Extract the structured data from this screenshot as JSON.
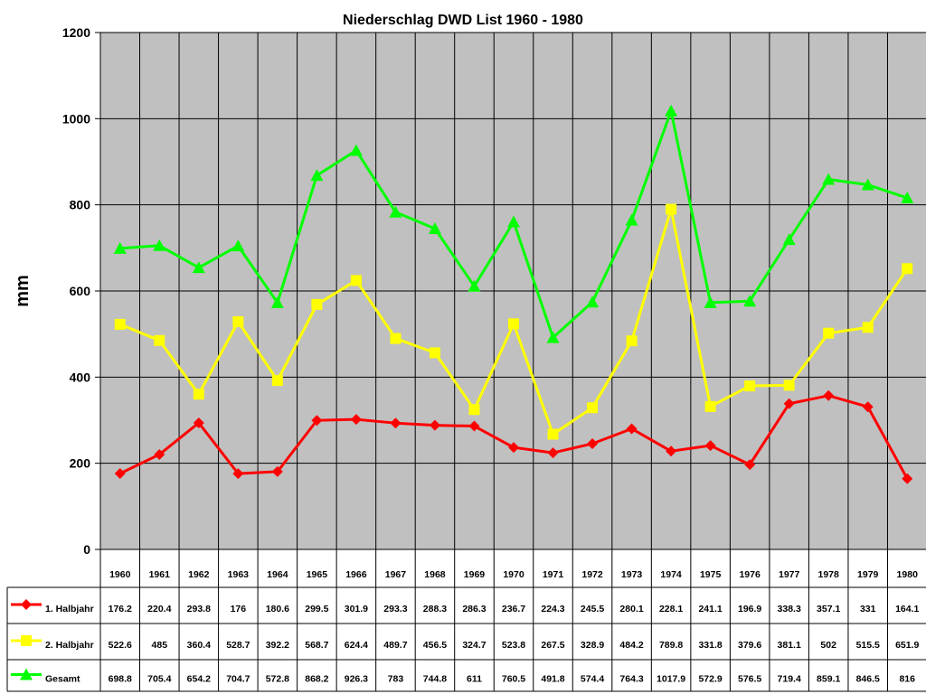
{
  "chart_data": {
    "type": "line",
    "title": "Niederschlag DWD List 1960 - 1980",
    "xlabel": "",
    "ylabel": "mm",
    "ylim": [
      0,
      1200
    ],
    "yticks": [
      0,
      200,
      400,
      600,
      800,
      1000,
      1200
    ],
    "grid": true,
    "plot_background": "#c0c0c0",
    "legend": "data-table-below",
    "categories": [
      "1960",
      "1961",
      "1962",
      "1963",
      "1964",
      "1965",
      "1966",
      "1967",
      "1968",
      "1969",
      "1970",
      "1971",
      "1972",
      "1973",
      "1974",
      "1975",
      "1976",
      "1977",
      "1978",
      "1979",
      "1980"
    ],
    "series": [
      {
        "name": "1. Halbjahr",
        "color": "#ff0000",
        "marker": "diamond",
        "values": [
          176.2,
          220.4,
          293.8,
          176,
          180.6,
          299.5,
          301.9,
          293.3,
          288.3,
          286.3,
          236.7,
          224.3,
          245.5,
          280.1,
          228.1,
          241.1,
          196.9,
          338.3,
          357.1,
          331,
          164.1
        ],
        "labels": [
          "176.2",
          "220.4",
          "293.8",
          "176",
          "180.6",
          "299.5",
          "301.9",
          "293.3",
          "288.3",
          "286.3",
          "236.7",
          "224.3",
          "245.5",
          "280.1",
          "228.1",
          "241.1",
          "196.9",
          "338.3",
          "357.1",
          "331",
          "164.1"
        ]
      },
      {
        "name": "2. Halbjahr",
        "color": "#ffff00",
        "marker": "square",
        "values": [
          522.6,
          485,
          360.4,
          528.7,
          392.2,
          568.7,
          624.4,
          489.7,
          456.5,
          324.7,
          523.8,
          267.5,
          328.9,
          484.2,
          789.8,
          331.8,
          379.6,
          381.1,
          502,
          515.5,
          651.9
        ],
        "labels": [
          "522.6",
          "485",
          "360.4",
          "528.7",
          "392.2",
          "568.7",
          "624.4",
          "489.7",
          "456.5",
          "324.7",
          "523.8",
          "267.5",
          "328.9",
          "484.2",
          "789.8",
          "331.8",
          "379.6",
          "381.1",
          "502",
          "515.5",
          "651.9"
        ]
      },
      {
        "name": "Gesamt",
        "color": "#00ff00",
        "marker": "triangle",
        "values": [
          698.8,
          705.4,
          654.2,
          704.7,
          572.8,
          868.2,
          926.3,
          783,
          744.8,
          611,
          760.5,
          491.8,
          574.4,
          764.3,
          1017.9,
          572.9,
          576.5,
          719.4,
          859.1,
          846.5,
          816
        ],
        "labels": [
          "698.8",
          "705.4",
          "654.2",
          "704.7",
          "572.8",
          "868.2",
          "926.3",
          "783",
          "744.8",
          "611",
          "760.5",
          "491.8",
          "574.4",
          "764.3",
          "1017.9",
          "572.9",
          "576.5",
          "719.4",
          "859.1",
          "846.5",
          "816"
        ]
      }
    ]
  }
}
